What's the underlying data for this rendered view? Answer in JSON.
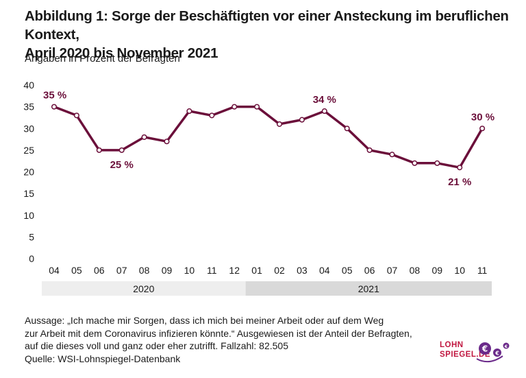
{
  "header": {
    "title_line1": "Abbildung 1: Sorge der Beschäftigten vor einer Ansteckung im beruflichen Kontext,",
    "title_line2": "April 2020 bis November 2021",
    "subtitle": "Angaben in Prozent der Befragten"
  },
  "footnote": {
    "line1": "Aussage: „Ich mache mir Sorgen, dass ich mich bei meiner Arbeit oder auf dem Weg",
    "line2": "zur Arbeit mit dem Coronavirus infizieren könnte.“ Ausgewiesen ist der Anteil der Befragten,",
    "line3": "auf die dieses voll und ganz oder eher zutrifft. Fallzahl:  82.505",
    "line4": "Quelle: WSI-Lohnspiegel-Datenbank"
  },
  "logo": {
    "line1": "LOHN",
    "line2": "SPIEGEL.DE",
    "coin_symbol": "€"
  },
  "colors": {
    "line": "#6b0f3a",
    "year_band_2020": "#eeeeee",
    "year_band_2021": "#d9d9d9",
    "logo": "#c0163f",
    "coin": "#6b2a8a"
  },
  "chart_data": {
    "type": "line",
    "x": [
      "04",
      "05",
      "06",
      "07",
      "08",
      "09",
      "10",
      "11",
      "12",
      "01",
      "02",
      "03",
      "04",
      "05",
      "06",
      "07",
      "08",
      "09",
      "10",
      "11"
    ],
    "values": [
      35,
      33,
      25,
      25,
      28,
      27,
      34,
      33,
      35,
      35,
      31,
      32,
      34,
      30,
      25,
      24,
      22,
      22,
      21,
      30
    ],
    "years": [
      {
        "label": "2020",
        "from": 0,
        "to": 8
      },
      {
        "label": "2021",
        "from": 9,
        "to": 19
      }
    ],
    "annotations": [
      {
        "index": 0,
        "text": "35 %"
      },
      {
        "index": 3,
        "text": "25 %"
      },
      {
        "index": 12,
        "text": "34 %"
      },
      {
        "index": 18,
        "text": "21 %"
      },
      {
        "index": 19,
        "text": "30 %"
      }
    ],
    "ylim": [
      0,
      40
    ],
    "yticks": [
      "0",
      "5",
      "10",
      "15",
      "20",
      "25",
      "30",
      "35",
      "40"
    ],
    "grid": false,
    "legend": "none"
  }
}
